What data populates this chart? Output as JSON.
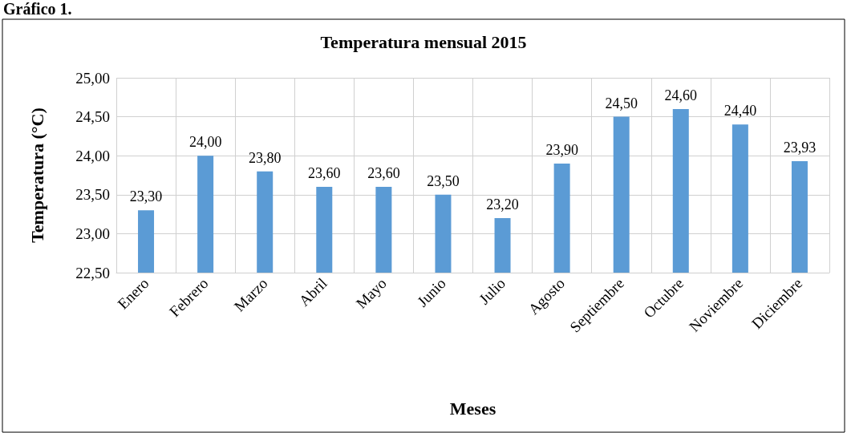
{
  "chart_data": {
    "type": "bar",
    "title": "Temperatura mensual 2015",
    "xlabel": "Meses",
    "ylabel": "Temperatura (°C)",
    "annotations": [
      "Gráfico 1."
    ],
    "categories": [
      "Enero",
      "Febrero",
      "Marzo",
      "Abril",
      "Mayo",
      "Junio",
      "Julio",
      "Agosto",
      "Septiembre",
      "Octubre",
      "Noviembre",
      "Diciembre"
    ],
    "values": [
      23.3,
      24.0,
      23.8,
      23.6,
      23.6,
      23.5,
      23.2,
      23.9,
      24.5,
      24.6,
      24.4,
      23.93
    ],
    "value_labels": [
      "23,30",
      "24,00",
      "23,80",
      "23,60",
      "23,60",
      "23,50",
      "23,20",
      "23,90",
      "24,50",
      "24,60",
      "24,40",
      "23,93"
    ],
    "color": "#5b9bd5",
    "ylim": [
      22.5,
      25
    ],
    "yticks": [
      {
        "value": 22.5,
        "label": "22,50"
      },
      {
        "value": 23,
        "label": "23,00"
      },
      {
        "value": 23.5,
        "label": "23,50"
      },
      {
        "value": 24,
        "label": "24,00"
      },
      {
        "value": 24.5,
        "label": "24,50"
      },
      {
        "value": 25,
        "label": "25,00"
      }
    ],
    "grid": true
  }
}
